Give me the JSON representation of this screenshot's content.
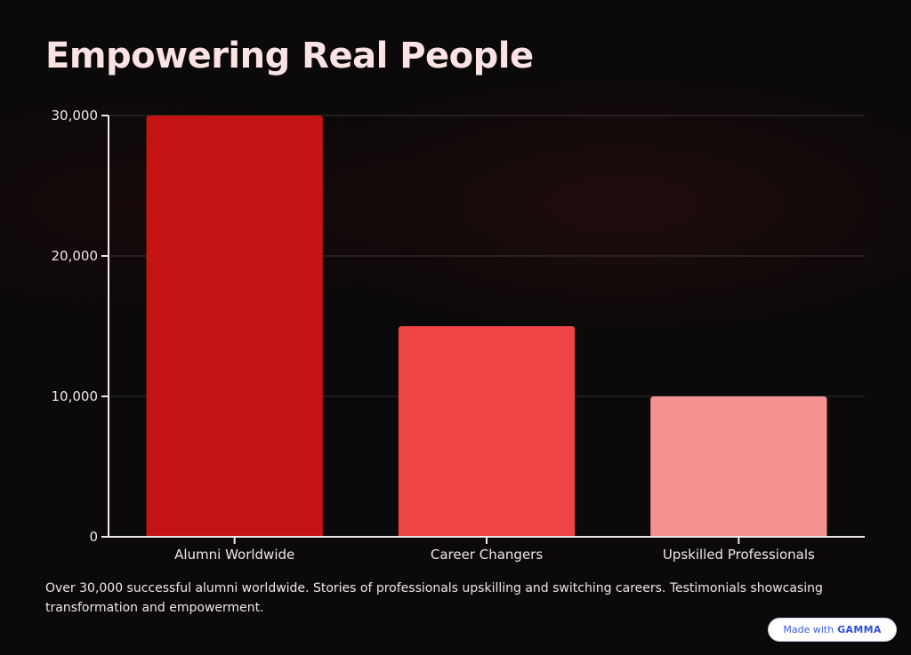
{
  "slide": {
    "title": "Empowering Real People",
    "caption": "Over 30,000 successful alumni worldwide. Stories of professionals upskilling and switching careers. Testimonials showcasing transformation and empowerment.",
    "badge": {
      "prefix": "Made with",
      "brand": "GAMMA"
    }
  },
  "chart_data": {
    "type": "bar",
    "categories": [
      "Alumni Worldwide",
      "Career Changers",
      "Upskilled Professionals"
    ],
    "values": [
      30000,
      15000,
      10000
    ],
    "colors": [
      "#c41414",
      "#ee4444",
      "#f49191"
    ],
    "ylim": [
      0,
      30000
    ],
    "yticks": [
      0,
      10000,
      20000,
      30000
    ],
    "ytick_labels": [
      "0",
      "10,000",
      "20,000",
      "30,000"
    ],
    "grid": true,
    "legend": "none",
    "title": "",
    "xlabel": "",
    "ylabel": ""
  }
}
